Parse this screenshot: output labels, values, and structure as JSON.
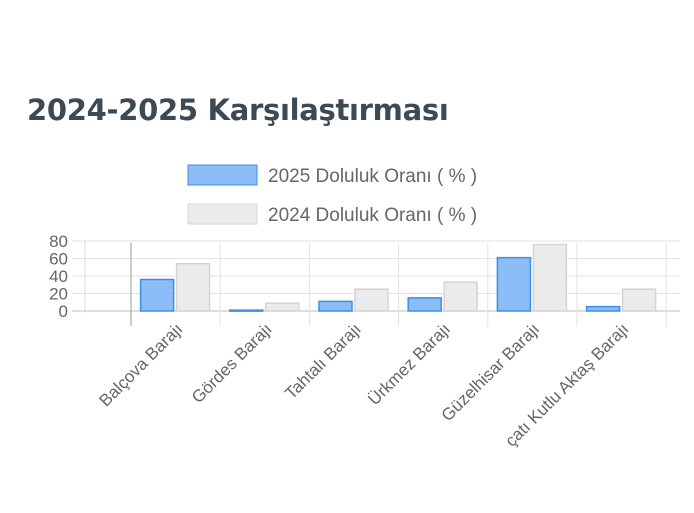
{
  "section": {
    "title": "2024-2025 Karşılaştırması"
  },
  "chart_data": {
    "type": "bar",
    "categories": [
      "Balçova Barajı",
      "Gördes Barajı",
      "Tahtalı Barajı",
      "Ürkmez Barajı",
      "Güzelhisar Barajı",
      "Kavacık-Zeytinliova Barajı (Çocatı Kutlu Aktaş Barajı)"
    ],
    "category_labels_visible": [
      "Balçova Barajı",
      "Gördes Barajı",
      "Tahtalı Barajı",
      "Ürkmez Barajı",
      "Güzelhisar Barajı",
      "çatı Kutlu Aktaş Barajı"
    ],
    "series": [
      {
        "name": "2025 Doluluk Oranı ( % )",
        "values": [
          36,
          1,
          11,
          15,
          61,
          5
        ],
        "color": "#8dbdf7",
        "border": "#3c8ee8"
      },
      {
        "name": "2024 Doluluk Oranı ( % )",
        "values": [
          54,
          9,
          25,
          33,
          76,
          25
        ],
        "color": "#ebebeb",
        "border": "#d4d4d4"
      }
    ],
    "y_ticks": [
      "0",
      "20",
      "40",
      "60",
      "80"
    ],
    "ylim": [
      0,
      80
    ],
    "grid": true,
    "legend_position": "top"
  }
}
